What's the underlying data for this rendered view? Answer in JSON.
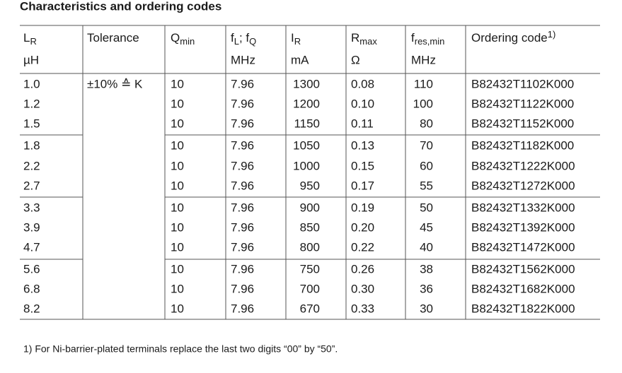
{
  "title": "Characteristics and ordering codes",
  "table": {
    "columns": [
      {
        "parts": [
          {
            "text": "L"
          },
          {
            "text": "R",
            "style": "sub"
          }
        ],
        "unit": "µH"
      },
      {
        "parts": [
          {
            "text": "Tolerance"
          }
        ]
      },
      {
        "parts": [
          {
            "text": "Q"
          },
          {
            "text": "min",
            "style": "sub"
          }
        ]
      },
      {
        "parts": [
          {
            "text": "f"
          },
          {
            "text": "L",
            "style": "sub"
          },
          {
            "text": "; f"
          },
          {
            "text": "Q",
            "style": "sub"
          }
        ],
        "unit": "MHz"
      },
      {
        "parts": [
          {
            "text": "I"
          },
          {
            "text": "R",
            "style": "sub"
          }
        ],
        "unit": "mA",
        "align": "right"
      },
      {
        "parts": [
          {
            "text": "R"
          },
          {
            "text": "max",
            "style": "sub"
          }
        ],
        "unit": "Ω"
      },
      {
        "parts": [
          {
            "text": "f"
          },
          {
            "text": "res,min",
            "style": "sub"
          }
        ],
        "unit": "MHz",
        "align": "right"
      },
      {
        "parts": [
          {
            "text": "Ordering code"
          },
          {
            "text": "1)",
            "style": "sup"
          }
        ]
      }
    ],
    "rows": [
      [
        "1.0",
        "±10% ≙ K",
        "10",
        "7.96",
        "1300",
        "0.08",
        "110",
        "B82432T1102K000"
      ],
      [
        "1.2",
        null,
        "10",
        "7.96",
        "1200",
        "0.10",
        "100",
        "B82432T1122K000"
      ],
      [
        "1.5",
        null,
        "10",
        "7.96",
        "1150",
        "0.11",
        "80",
        "B82432T1152K000"
      ],
      [
        "1.8",
        null,
        "10",
        "7.96",
        "1050",
        "0.13",
        "70",
        "B82432T1182K000"
      ],
      [
        "2.2",
        null,
        "10",
        "7.96",
        "1000",
        "0.15",
        "60",
        "B82432T1222K000"
      ],
      [
        "2.7",
        null,
        "10",
        "7.96",
        "950",
        "0.17",
        "55",
        "B82432T1272K000"
      ],
      [
        "3.3",
        null,
        "10",
        "7.96",
        "900",
        "0.19",
        "50",
        "B82432T1332K000"
      ],
      [
        "3.9",
        null,
        "10",
        "7.96",
        "850",
        "0.20",
        "45",
        "B82432T1392K000"
      ],
      [
        "4.7",
        null,
        "10",
        "7.96",
        "800",
        "0.22",
        "40",
        "B82432T1472K000"
      ],
      [
        "5.6",
        null,
        "10",
        "7.96",
        "750",
        "0.26",
        "38",
        "B82432T1562K000"
      ],
      [
        "6.8",
        null,
        "10",
        "7.96",
        "700",
        "0.30",
        "36",
        "B82432T1682K000"
      ],
      [
        "8.2",
        null,
        "10",
        "7.96",
        "670",
        "0.33",
        "30",
        "B82432T1822K000"
      ]
    ]
  },
  "footnote": "1)  For Ni-barrier-plated terminals replace the last two digits “00” by “50”."
}
